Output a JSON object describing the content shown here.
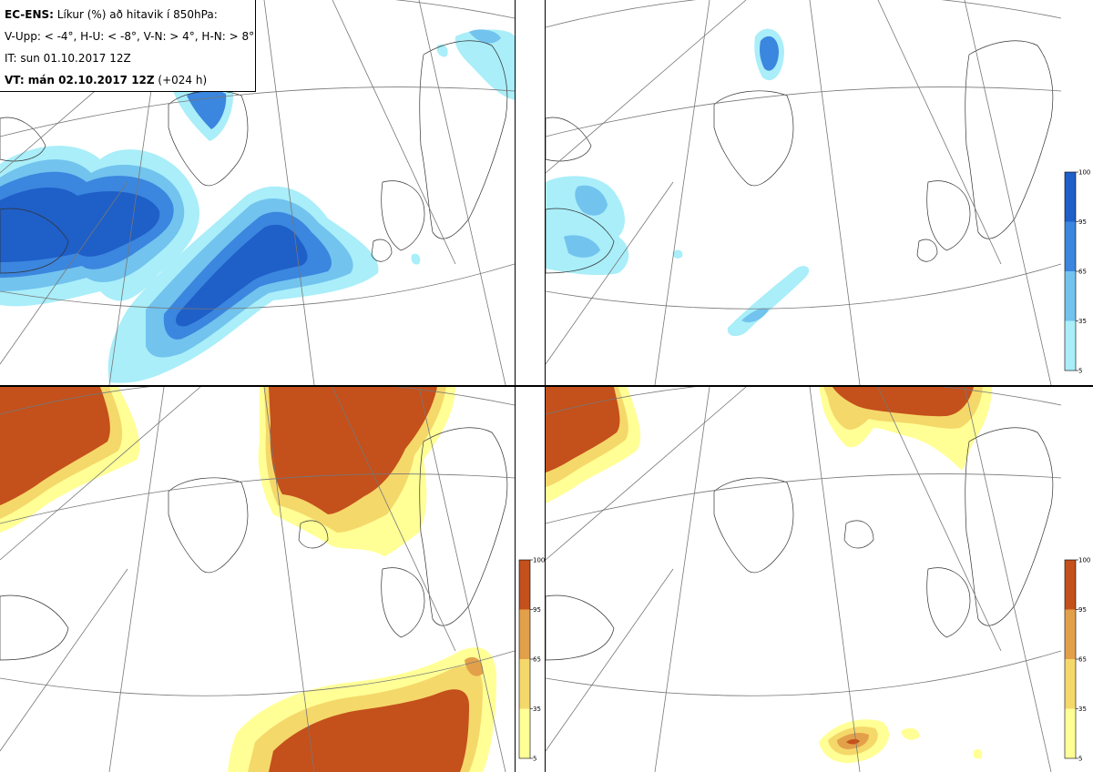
{
  "header": {
    "title_bold": "EC-ENS:",
    "title_rest": " Líkur (%) að hitavik í 850hPa:",
    "thresholds": "V-Upp: < -4°, H-U: < -8°, V-N: > 4°, H-N: > 8°",
    "initial_time": "IT: sun 01.10.2017 12Z",
    "valid_bold": "VT: mán 02.10.2017 12Z",
    "valid_rest": " (+024 h)"
  },
  "panels": [
    {
      "id": "V-Upp",
      "field": "probability of 850hPa temperature anomaly < -4°",
      "palette": "blue"
    },
    {
      "id": "H-U",
      "field": "probability of 850hPa temperature anomaly < -8°",
      "palette": "blue"
    },
    {
      "id": "V-N",
      "field": "probability of 850hPa temperature anomaly > 4°",
      "palette": "orange"
    },
    {
      "id": "H-N",
      "field": "probability of 850hPa temperature anomaly > 8°",
      "palette": "orange"
    }
  ],
  "colorbar_blue": {
    "ticks": [
      "100",
      "95",
      "65",
      "35",
      "5"
    ],
    "colors": [
      "#1f5fc8",
      "#3b86de",
      "#72c3ee",
      "#a9eef9"
    ]
  },
  "colorbar_orange": {
    "ticks": [
      "100",
      "95",
      "65",
      "35",
      "5"
    ],
    "colors": [
      "#c4501b",
      "#e3a04a",
      "#f5d86a",
      "#ffff96"
    ]
  }
}
